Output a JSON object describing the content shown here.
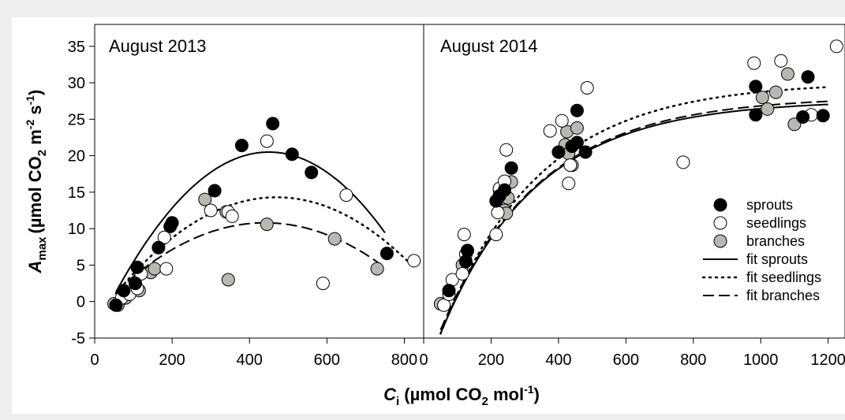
{
  "chart_data": [
    {
      "type": "scatter",
      "title": "August 2013",
      "xlim": [
        0,
        850
      ],
      "ylim": [
        -5,
        38
      ],
      "xticks": [
        0,
        200,
        400,
        600,
        800
      ],
      "yticks": [
        -5,
        0,
        5,
        10,
        15,
        20,
        25,
        30,
        35
      ],
      "series": [
        {
          "name": "sprouts",
          "style": "filled",
          "color": "#000000",
          "x": [
            55,
            75,
            105,
            110,
            165,
            195,
            200,
            310,
            380,
            460,
            510,
            560,
            755
          ],
          "y": [
            -0.5,
            1.5,
            2.5,
            4.7,
            7.4,
            10.3,
            10.8,
            15.2,
            21.4,
            24.4,
            20.2,
            17.7,
            6.6
          ],
          "fit": {
            "type": "quadratic",
            "peak_x": 450,
            "peak_y": 20.5,
            "x_range": [
              55,
              750
            ],
            "a": -0.000123,
            "x0": 450,
            "k": 20.5
          }
        },
        {
          "name": "seedlings",
          "style": "open",
          "color": "#ffffff",
          "x": [
            70,
            90,
            110,
            120,
            180,
            185,
            300,
            345,
            355,
            445,
            590,
            650,
            825
          ],
          "y": [
            0.5,
            1,
            1.8,
            3.8,
            8.8,
            4.5,
            12.5,
            12.3,
            11.7,
            22,
            2.5,
            14.6,
            5.6
          ],
          "fit": {
            "type": "quadratic",
            "x_range": [
              55,
              820
            ],
            "a": -7.65e-05,
            "x0": 470,
            "k": 14.3
          }
        },
        {
          "name": "branches",
          "style": "gray",
          "color": "#b8b8b0",
          "x": [
            50,
            60,
            80,
            85,
            115,
            145,
            155,
            285,
            340,
            345,
            445,
            620,
            730
          ],
          "y": [
            -0.3,
            -0.5,
            0.5,
            1,
            1.5,
            4,
            4.5,
            14,
            12.3,
            3,
            10.6,
            8.6,
            4.5
          ],
          "fit": {
            "type": "quadratic",
            "x_range": [
              55,
              750
            ],
            "a": -6.38e-05,
            "x0": 440,
            "k": 10.8
          }
        }
      ]
    },
    {
      "type": "scatter",
      "title": "August 2014",
      "xlim": [
        0,
        1250
      ],
      "ylim": [
        -5,
        38
      ],
      "xticks": [
        0,
        200,
        400,
        600,
        800,
        1000,
        1200
      ],
      "series": [
        {
          "name": "sprouts",
          "style": "filled",
          "color": "#000000",
          "x": [
            75,
            125,
            130,
            215,
            225,
            240,
            260,
            400,
            440,
            455,
            455,
            480,
            985,
            985,
            1125,
            1140,
            1185
          ],
          "y": [
            1.5,
            5.5,
            7,
            13.8,
            14.5,
            15.3,
            18.3,
            20.5,
            21.3,
            26.2,
            21.8,
            20.5,
            29.5,
            25.6,
            25.3,
            30.8,
            25.5
          ],
          "fit": {
            "type": "exp",
            "x_range": [
              50,
              1200
            ],
            "A": 27.6,
            "B": 32,
            "k": 0.0035,
            "x0": 50
          }
        },
        {
          "name": "seedlings",
          "style": "open",
          "color": "#ffffff",
          "x": [
            60,
            75,
            85,
            115,
            120,
            125,
            215,
            220,
            225,
            240,
            245,
            375,
            410,
            430,
            435,
            485,
            770,
            980,
            1060,
            1150,
            1225
          ],
          "y": [
            -0.5,
            1,
            3,
            3.8,
            9.2,
            6.5,
            9.2,
            12.2,
            15.5,
            16.5,
            20.8,
            23.4,
            24.8,
            16.2,
            18.7,
            29.3,
            19.1,
            32.7,
            33,
            25.6,
            35
          ],
          "fit": {
            "type": "exp",
            "x_range": [
              50,
              1200
            ],
            "A": 30.1,
            "B": 34.5,
            "k": 0.0034,
            "x0": 50
          }
        },
        {
          "name": "branches",
          "style": "gray",
          "color": "#b8b8b0",
          "x": [
            50,
            115,
            125,
            225,
            230,
            240,
            245,
            250,
            260,
            420,
            425,
            430,
            440,
            455,
            1005,
            1020,
            1045,
            1080,
            1100
          ],
          "y": [
            -0.3,
            5,
            6.5,
            15.3,
            13,
            12.5,
            12.1,
            14.2,
            16.4,
            21.5,
            23.3,
            20.3,
            18.7,
            23.8,
            28,
            26.4,
            28.7,
            31.2,
            24.3
          ],
          "fit": {
            "type": "exp",
            "x_range": [
              50,
              1200
            ],
            "A": 28.1,
            "B": 32,
            "k": 0.0034,
            "x0": 50
          }
        }
      ]
    }
  ],
  "ylabel_main": "A",
  "ylabel_sub": "max",
  "ylabel_unit_a": "(µmol CO",
  "ylabel_unit_b": "2",
  "ylabel_unit_c": " m",
  "ylabel_unit_d": "-2",
  "ylabel_unit_e": " s",
  "ylabel_unit_f": "-1",
  "ylabel_unit_g": ")",
  "xlabel_main": "C",
  "xlabel_sub": "i",
  "xlabel_unit_a": " (µmol CO",
  "xlabel_unit_b": "2",
  "xlabel_unit_c": " mol",
  "xlabel_unit_d": "-1",
  "xlabel_unit_e": ")",
  "legend": {
    "placement": "lower-right of right panel",
    "items": [
      "sprouts",
      "seedlings",
      "branches",
      "fit sprouts",
      "fit seedlings",
      "fit branches"
    ]
  }
}
